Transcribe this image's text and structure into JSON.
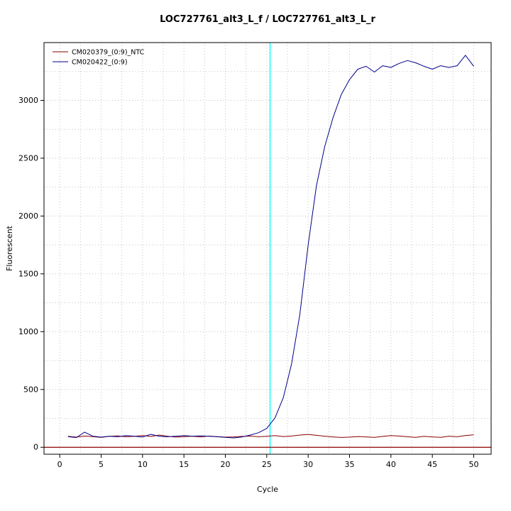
{
  "page": {
    "background": "#ffffff"
  },
  "chart_data": {
    "type": "line",
    "title": "LOC727761_alt3_L_f / LOC727761_alt3_L_r",
    "xlabel": "Cycle",
    "ylabel": "Fluorescent",
    "xlim": [
      -1.9,
      52.1
    ],
    "ylim": [
      -60,
      3500
    ],
    "x_ticks": [
      0,
      5,
      10,
      15,
      20,
      25,
      30,
      35,
      40,
      45,
      50
    ],
    "y_ticks": [
      0,
      500,
      1000,
      1500,
      2000,
      2500,
      3000
    ],
    "grid": {
      "x_step": 2.5,
      "y_step": 250,
      "color": "#c4c4c4",
      "style": "dotted"
    },
    "legend_position": "top-left",
    "x": [
      1,
      2,
      3,
      4,
      5,
      6,
      7,
      8,
      9,
      10,
      11,
      12,
      13,
      14,
      15,
      16,
      17,
      18,
      19,
      20,
      21,
      22,
      23,
      24,
      25,
      26,
      27,
      28,
      29,
      30,
      31,
      32,
      33,
      34,
      35,
      36,
      37,
      38,
      39,
      40,
      41,
      42,
      43,
      44,
      45,
      46,
      47,
      48,
      49,
      50
    ],
    "series": [
      {
        "name": "CM020379_(0:9)_NTC",
        "color": "#8B0000",
        "values": [
          95,
          88,
          97,
          92,
          86,
          95,
          99,
          91,
          95,
          101,
          94,
          106,
          96,
          88,
          92,
          96,
          90,
          97,
          92,
          88,
          90,
          94,
          97,
          91,
          95,
          101,
          93,
          97,
          106,
          111,
          103,
          96,
          90,
          85,
          88,
          93,
          90,
          86,
          94,
          101,
          97,
          91,
          86,
          95,
          90,
          86,
          96,
          91,
          101,
          108
        ]
      },
      {
        "name": "CM020422_(0:9)",
        "color": "#00008B",
        "values": [
          92,
          84,
          131,
          96,
          88,
          96,
          91,
          101,
          96,
          89,
          112,
          96,
          91,
          96,
          101,
          96,
          99,
          96,
          91,
          86,
          81,
          89,
          106,
          126,
          163,
          255,
          430,
          720,
          1150,
          1750,
          2260,
          2600,
          2850,
          3050,
          3180,
          3270,
          3295,
          3245,
          3300,
          3285,
          3320,
          3345,
          3325,
          3295,
          3270,
          3300,
          3285,
          3300,
          3390,
          3295
        ]
      }
    ],
    "reference_lines": {
      "horizontal": {
        "y": 0,
        "color": "#8B0000"
      },
      "vertical": {
        "x": 25.4,
        "color": "#00FFFF"
      }
    }
  }
}
